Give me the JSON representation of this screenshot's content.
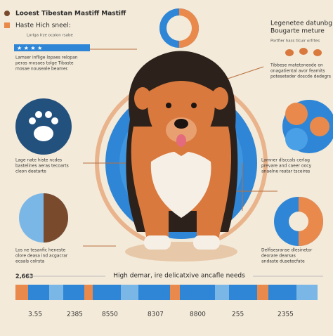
{
  "header": {
    "title": "Looest Tibestan Mastiff Mastiff",
    "subtitle": "Haste Hich sneel:",
    "note": "Lorlga Irze ocalon rsabe"
  },
  "left_top": {
    "lines": [
      "Lamser inflige lopaes relopan",
      "peras mosaes tolge Tibaste",
      "mosae nouseale beamer."
    ]
  },
  "right_top": {
    "title_lines": [
      "Legenetee datunbg",
      "Bougarte meture"
    ],
    "note": "Portfier hass tlcuir orfrtes"
  },
  "right_upper": {
    "lines": [
      "Tibbese matetoneode on",
      "onagatiental avor feamits",
      "poteseteder doscde dedegrs"
    ]
  },
  "left_middle": {
    "lines": [
      "Lage nate histe ncdes",
      "bastelines aeras tecoarts",
      "cleon deetarte"
    ]
  },
  "right_middle": {
    "lines": [
      "Lamner dlsccals cerlag",
      "prevare and caeer oocy",
      "anaelne reatar tsceires"
    ]
  },
  "left_bottom": {
    "lines": [
      "Los ne tesanfic heneste",
      "olore deasa ind acgacrar",
      "ecaals colrsta"
    ]
  },
  "right_bottom": {
    "lines": [
      "Delfisesranse dlesinetor",
      "deorare dearsas",
      "andaste dusetecfate"
    ]
  },
  "footer": {
    "stat": "2,663",
    "headline": "High demar, ire delicatxive ancafle needs",
    "numbers": [
      "3.55",
      "2385",
      "8550",
      "8307",
      "8800",
      "255",
      "2355"
    ]
  }
}
